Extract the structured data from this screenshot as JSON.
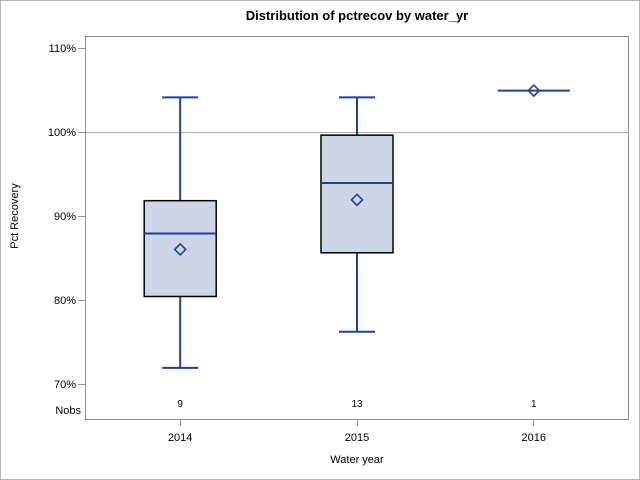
{
  "chart_data": {
    "type": "boxplot",
    "title": "Distribution of pctrecov by water_yr",
    "xlabel": "Water year",
    "ylabel": "Pct Recovery",
    "categories": [
      "2014",
      "2015",
      "2016"
    ],
    "nobs_label": "Nobs",
    "nobs": [
      "9",
      "13",
      "1"
    ],
    "y_ticks": [
      110,
      100,
      90,
      80,
      70
    ],
    "y_tick_labels": [
      "110%",
      "100%",
      "90%",
      "80%",
      "70%"
    ],
    "ylim": [
      65.8,
      111.5
    ],
    "refline": 100,
    "grid": false,
    "legend": "none",
    "series": [
      {
        "category": "2014",
        "n": 9,
        "min": 72,
        "q1": 80.5,
        "median": 88,
        "mean": 86.1,
        "q3": 91.9,
        "max": 104.2
      },
      {
        "category": "2015",
        "n": 13,
        "min": 76.3,
        "q1": 85.7,
        "median": 94,
        "mean": 92,
        "q3": 99.7,
        "max": 104.2
      },
      {
        "category": "2016",
        "n": 1,
        "min": 105,
        "q1": 105,
        "median": 105,
        "mean": 105,
        "q3": 105,
        "max": 105
      }
    ]
  },
  "colors": {
    "box_fill": "#ccd6e6",
    "box_border": "#000000",
    "line": "#20419a",
    "frame": "#8f8f8f",
    "refline": "#a6a6a6",
    "text": "#000000"
  }
}
